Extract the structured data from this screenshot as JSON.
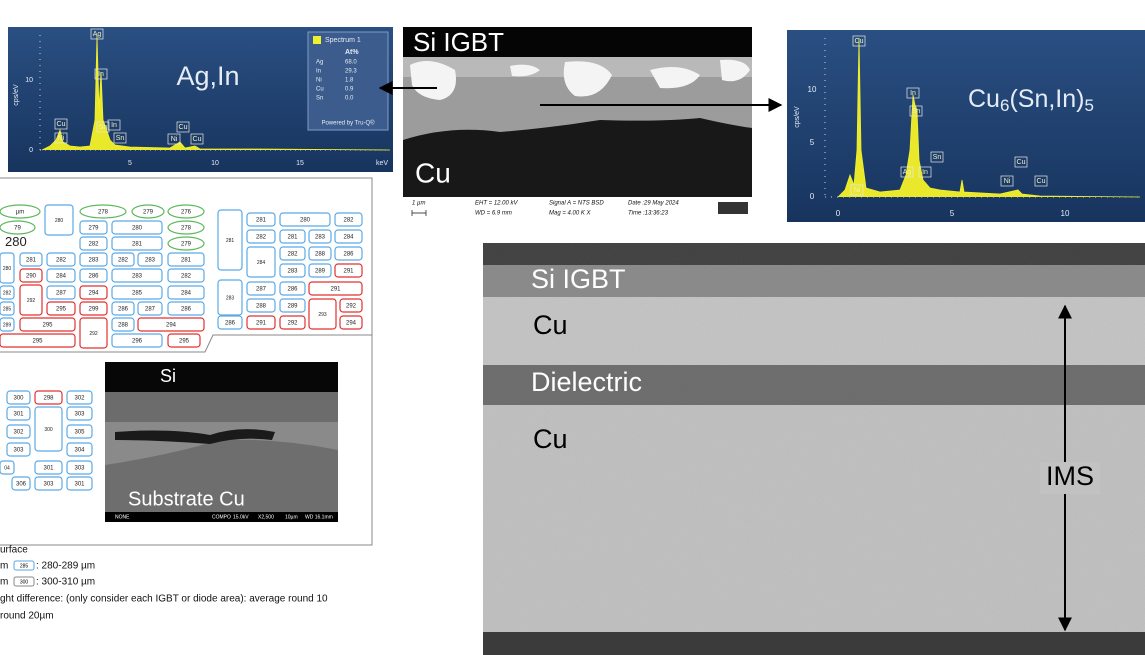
{
  "eds_left": {
    "title": "Ag,In",
    "legend": {
      "name": "Spectrum 1",
      "header": "At%",
      "rows": [
        [
          "Ag",
          "68.0"
        ],
        [
          "In",
          "29.3"
        ],
        [
          "Ni",
          "1.8"
        ],
        [
          "Cu",
          "0.9"
        ],
        [
          "Sn",
          "0.0"
        ]
      ],
      "footer": "Powered by Tru-Q®"
    },
    "y_axis": "cps/eV",
    "y_ticks": [
      "10",
      "0"
    ],
    "x_ticks": [
      "5",
      "10",
      "15"
    ],
    "x_unit": "keV",
    "peaks": [
      "Ag",
      "In",
      "Cu",
      "Ni",
      "Sn",
      "In",
      "Sn",
      "Cu",
      "Ni",
      "Cu"
    ]
  },
  "sem_top": {
    "top_label": "Si IGBT",
    "bottom_label": "Cu",
    "scale": "1 µm",
    "info": [
      "EHT = 12.00 kV",
      "WD = 6.9 mm",
      "Signal A = NTS BSD",
      "Mag = 4.00 K X",
      "Date :29 May 2024",
      "Time :13:36:23"
    ]
  },
  "eds_right": {
    "title": [
      "Cu",
      "6",
      "(Sn,In)",
      "5"
    ],
    "y_axis": "cps/eV",
    "y_ticks": [
      "10",
      "5",
      "0"
    ],
    "x_ticks": [
      "0",
      "5",
      "10"
    ],
    "peaks": [
      "Cu",
      "In",
      "Sn",
      "Ni",
      "Ag",
      "In",
      "Sn",
      "Cu",
      "Ni",
      "Cu"
    ]
  },
  "thickness_doc": {
    "boxes": [
      "µm",
      "280",
      "278",
      "279",
      "276",
      "79",
      "279",
      "280",
      "278",
      "280",
      "282",
      "281",
      "279",
      "280",
      "281",
      "282",
      "283",
      "282",
      "283",
      "281",
      "290",
      "284",
      "286",
      "283",
      "282",
      "282",
      "292",
      "287",
      "294",
      "285",
      "284",
      "285",
      "295",
      "299",
      "286",
      "287",
      "286",
      "289",
      "295",
      "292",
      "288",
      "294",
      "295",
      "296",
      "295",
      "281",
      "281",
      "280",
      "282",
      "282",
      "281",
      "283",
      "284",
      "284",
      "282",
      "288",
      "286",
      "283",
      "289",
      "291",
      "283",
      "287",
      "286",
      "291",
      "288",
      "289",
      "293",
      "292",
      "286",
      "291",
      "292",
      "294",
      "300",
      "298",
      "302",
      "301",
      "300",
      "303",
      "302",
      "305",
      "303",
      "304",
      "04",
      "301",
      "303",
      "306",
      "303",
      "301"
    ],
    "sem": {
      "top": "Si",
      "bottom": "Substrate Cu",
      "info": [
        "NONE",
        "COMPO",
        "15.0kV",
        "X2,500",
        "10µm",
        "WD 16.1mm"
      ]
    },
    "notes": [
      "urface",
      [
        "m",
        "285",
        ": 280-289 µm"
      ],
      [
        "m",
        "300",
        ": 300-310 µm"
      ],
      "ght difference: (only consider each IGBT or diode area): average round 10",
      "round 20µm"
    ]
  },
  "sem_large": {
    "layers": [
      "Si IGBT",
      "Cu",
      "Dielectric",
      "Cu"
    ],
    "bracket": "IMS"
  }
}
